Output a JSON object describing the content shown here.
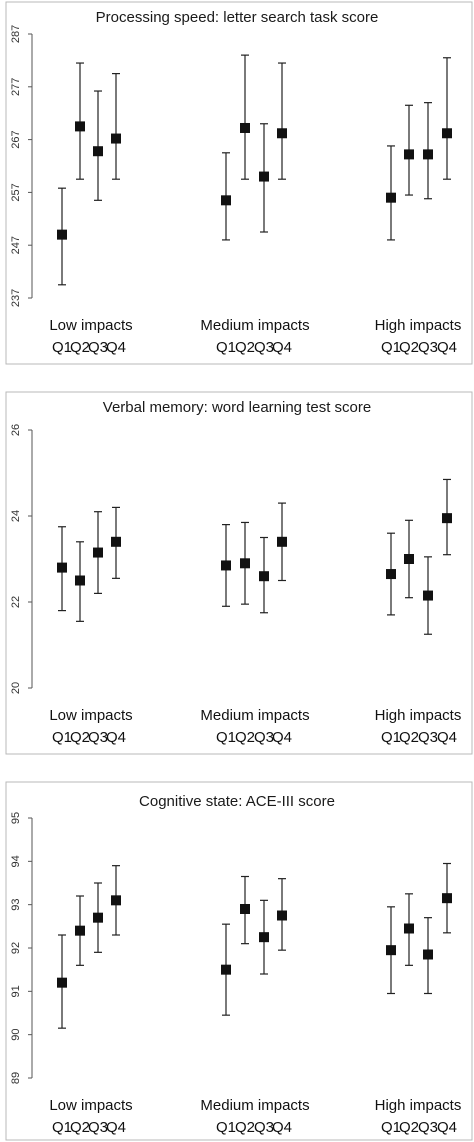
{
  "chart_data": [
    {
      "type": "scatter",
      "title": "Processing speed: letter search task score",
      "ylim": [
        237,
        287
      ],
      "yticks": [
        237,
        247,
        257,
        267,
        277,
        287
      ],
      "groups": [
        "Low impacts",
        "Medium impacts",
        "High impacts"
      ],
      "quartile_labels": [
        "Q1",
        "Q2",
        "Q3",
        "Q4"
      ],
      "points": [
        [
          {
            "y": 249.0,
            "lo": 239.5,
            "hi": 257.8
          },
          {
            "y": 269.5,
            "lo": 259.5,
            "hi": 281.5
          },
          {
            "y": 264.8,
            "lo": 255.5,
            "hi": 276.2
          },
          {
            "y": 267.2,
            "lo": 259.5,
            "hi": 279.5
          }
        ],
        [
          {
            "y": 255.5,
            "lo": 248.0,
            "hi": 264.5
          },
          {
            "y": 269.2,
            "lo": 259.5,
            "hi": 283.0
          },
          {
            "y": 260.0,
            "lo": 249.5,
            "hi": 270.0
          },
          {
            "y": 268.2,
            "lo": 259.5,
            "hi": 281.5
          }
        ],
        [
          {
            "y": 256.0,
            "lo": 248.0,
            "hi": 265.8
          },
          {
            "y": 264.2,
            "lo": 256.5,
            "hi": 273.5
          },
          {
            "y": 264.2,
            "lo": 255.8,
            "hi": 274.0
          },
          {
            "y": 268.2,
            "lo": 259.5,
            "hi": 282.5
          }
        ]
      ]
    },
    {
      "type": "scatter",
      "title": "Verbal memory: word learning test score",
      "ylim": [
        20,
        26
      ],
      "yticks": [
        20,
        22,
        24,
        26
      ],
      "groups": [
        "Low impacts",
        "Medium impacts",
        "High impacts"
      ],
      "quartile_labels": [
        "Q1",
        "Q2",
        "Q3",
        "Q4"
      ],
      "points": [
        [
          {
            "y": 22.8,
            "lo": 21.8,
            "hi": 23.75
          },
          {
            "y": 22.5,
            "lo": 21.55,
            "hi": 23.4
          },
          {
            "y": 23.15,
            "lo": 22.2,
            "hi": 24.1
          },
          {
            "y": 23.4,
            "lo": 22.55,
            "hi": 24.2
          }
        ],
        [
          {
            "y": 22.85,
            "lo": 21.9,
            "hi": 23.8
          },
          {
            "y": 22.9,
            "lo": 21.95,
            "hi": 23.85
          },
          {
            "y": 22.6,
            "lo": 21.75,
            "hi": 23.5
          },
          {
            "y": 23.4,
            "lo": 22.5,
            "hi": 24.3
          }
        ],
        [
          {
            "y": 22.65,
            "lo": 21.7,
            "hi": 23.6
          },
          {
            "y": 23.0,
            "lo": 22.1,
            "hi": 23.9
          },
          {
            "y": 22.15,
            "lo": 21.25,
            "hi": 23.05
          },
          {
            "y": 23.95,
            "lo": 23.1,
            "hi": 24.85
          }
        ]
      ]
    },
    {
      "type": "scatter",
      "title": "Cognitive state: ACE-III score",
      "ylim": [
        89,
        95
      ],
      "yticks": [
        89,
        90,
        91,
        92,
        93,
        94,
        95
      ],
      "groups": [
        "Low impacts",
        "Medium impacts",
        "High impacts"
      ],
      "quartile_labels": [
        "Q1",
        "Q2",
        "Q3",
        "Q4"
      ],
      "points": [
        [
          {
            "y": 91.2,
            "lo": 90.15,
            "hi": 92.3
          },
          {
            "y": 92.4,
            "lo": 91.6,
            "hi": 93.2
          },
          {
            "y": 92.7,
            "lo": 91.9,
            "hi": 93.5
          },
          {
            "y": 93.1,
            "lo": 92.3,
            "hi": 93.9
          }
        ],
        [
          {
            "y": 91.5,
            "lo": 90.45,
            "hi": 92.55
          },
          {
            "y": 92.9,
            "lo": 92.1,
            "hi": 93.65
          },
          {
            "y": 92.25,
            "lo": 91.4,
            "hi": 93.1
          },
          {
            "y": 92.75,
            "lo": 91.95,
            "hi": 93.6
          }
        ],
        [
          {
            "y": 91.95,
            "lo": 90.95,
            "hi": 92.95
          },
          {
            "y": 92.45,
            "lo": 91.6,
            "hi": 93.25
          },
          {
            "y": 91.85,
            "lo": 90.95,
            "hi": 92.7
          },
          {
            "y": 93.15,
            "lo": 92.35,
            "hi": 93.95
          }
        ]
      ]
    }
  ]
}
